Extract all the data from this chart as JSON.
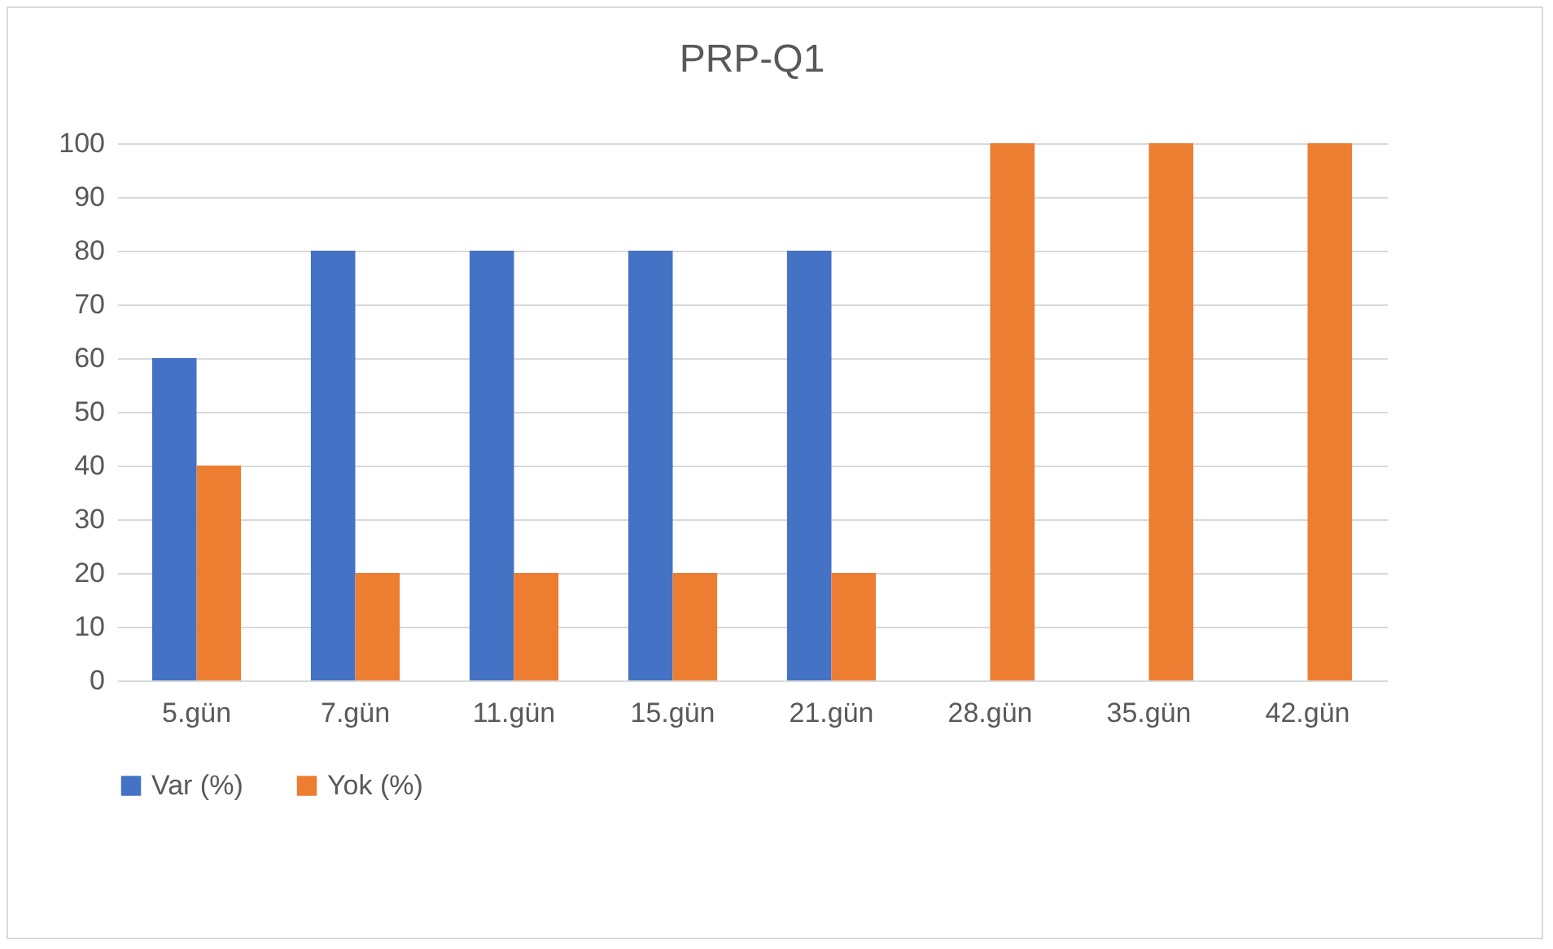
{
  "chart_data": {
    "type": "bar",
    "title": "PRP-Q1",
    "categories": [
      "5.gün",
      "7.gün",
      "11.gün",
      "15.gün",
      "21.gün",
      "28.gün",
      "35.gün",
      "42.gün"
    ],
    "series": [
      {
        "name": "Var (%)",
        "color": "#4472c4",
        "values": [
          60,
          80,
          80,
          80,
          80,
          0,
          0,
          0
        ]
      },
      {
        "name": "Yok (%)",
        "color": "#ed7d31",
        "values": [
          40,
          20,
          20,
          20,
          20,
          100,
          100,
          100
        ]
      }
    ],
    "ylim": [
      0,
      100
    ],
    "yticks": [
      0,
      10,
      20,
      30,
      40,
      50,
      60,
      70,
      80,
      90,
      100
    ],
    "grid": "y",
    "legend": "bottom"
  }
}
